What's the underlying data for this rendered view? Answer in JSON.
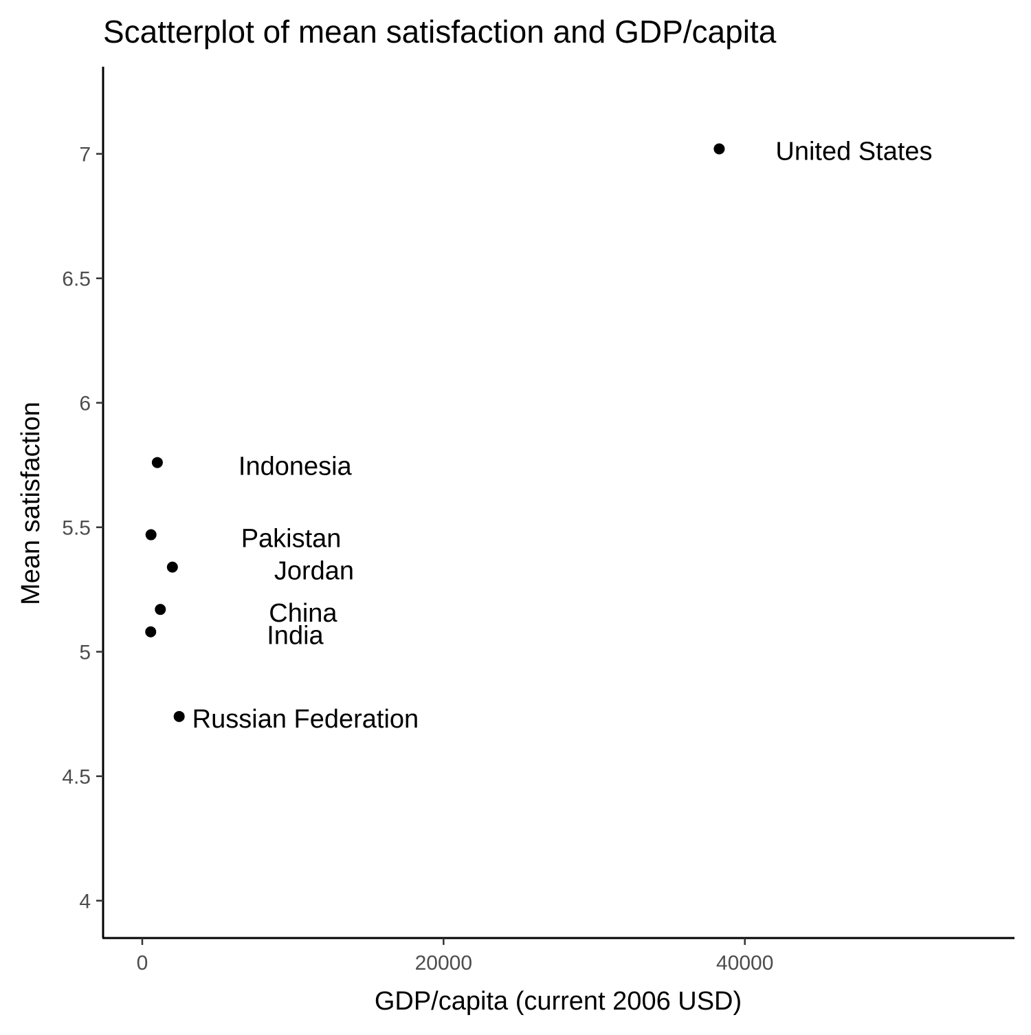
{
  "chart_data": {
    "type": "scatter",
    "title": "Scatterplot of mean satisfaction and GDP/capita",
    "xlabel": "GDP/capita (current 2006 USD)",
    "ylabel": "Mean satisfaction",
    "xlim": [
      -2600,
      57900
    ],
    "ylim": [
      3.85,
      7.35
    ],
    "x_ticks": [
      0,
      20000,
      40000
    ],
    "x_tick_labels": [
      "0",
      "20000",
      "40000"
    ],
    "y_ticks": [
      4,
      4.5,
      5,
      5.5,
      6,
      6.5,
      7
    ],
    "y_tick_labels": [
      "4",
      "4.5",
      "5",
      "5.5",
      "6",
      "6.5",
      "7"
    ],
    "grid": false,
    "point_color": "#000000",
    "points": [
      {
        "label": "United States",
        "x": 38300,
        "y": 7.02
      },
      {
        "label": "Indonesia",
        "x": 1000,
        "y": 5.76
      },
      {
        "label": "Pakistan",
        "x": 580,
        "y": 5.47
      },
      {
        "label": "Jordan",
        "x": 2000,
        "y": 5.34
      },
      {
        "label": "China",
        "x": 1200,
        "y": 5.17
      },
      {
        "label": "India",
        "x": 560,
        "y": 5.08
      },
      {
        "label": "Russian Federation",
        "x": 2450,
        "y": 4.74
      }
    ]
  }
}
